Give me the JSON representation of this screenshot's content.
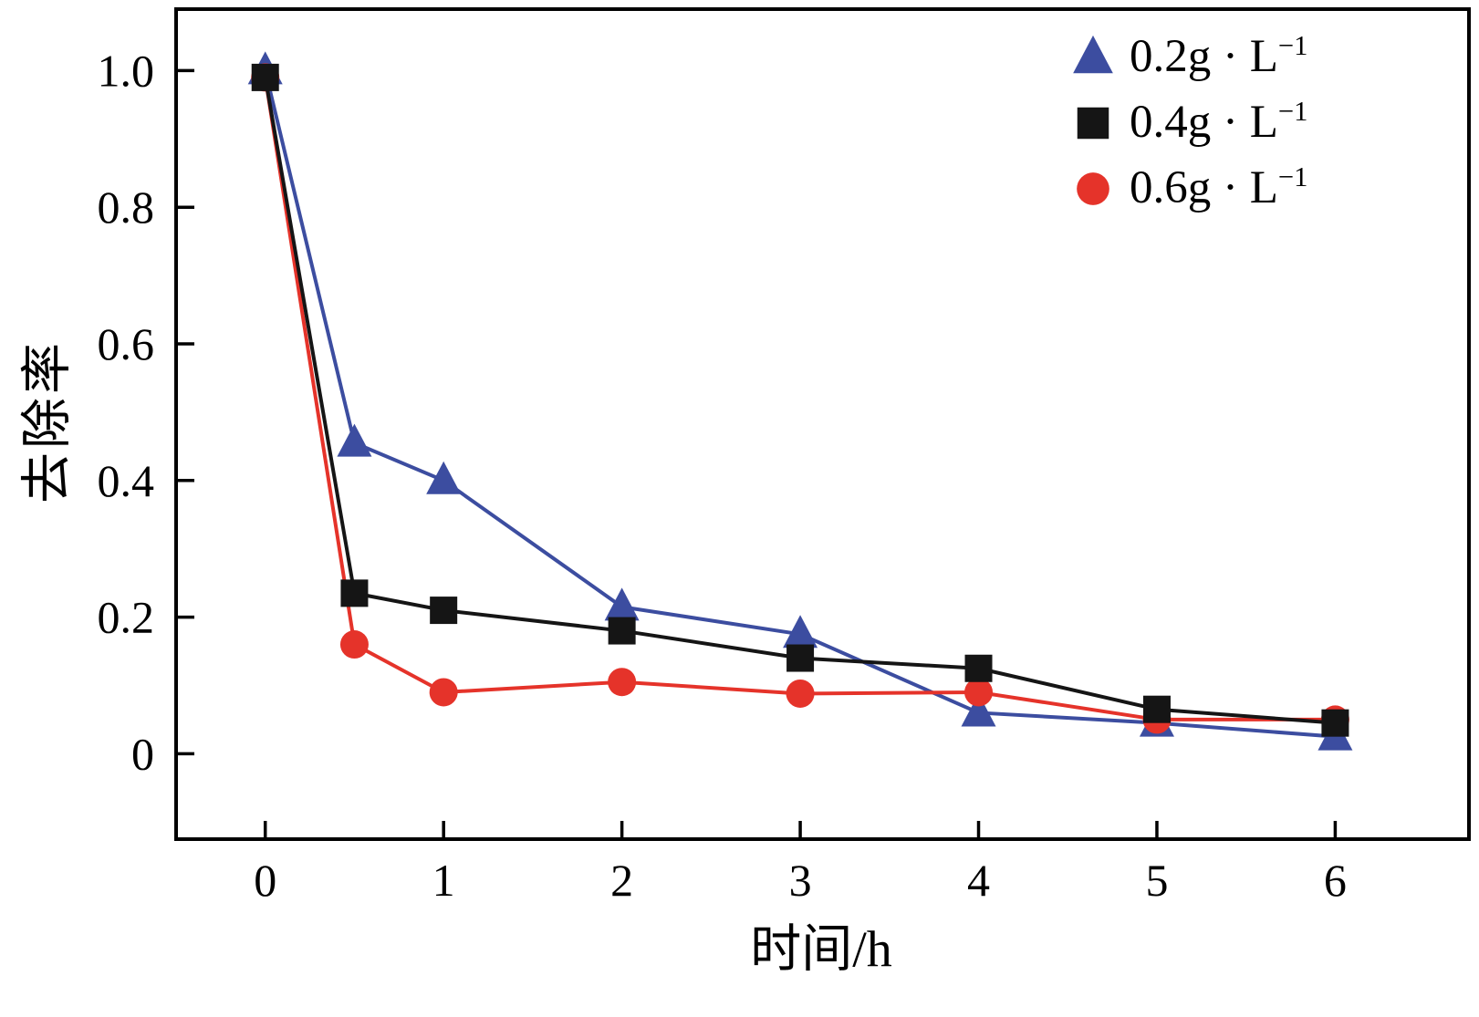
{
  "figure": {
    "background": "#ffffff",
    "axis_color": "#000000"
  },
  "chart_data": {
    "type": "line",
    "title": "",
    "xlabel": "时间/h",
    "ylabel": "去除率",
    "xlim": [
      -0.5,
      6.75
    ],
    "ylim": [
      -0.125,
      1.09
    ],
    "x_ticks": [
      0,
      1,
      2,
      3,
      4,
      5,
      6
    ],
    "x_tick_labels": [
      "0",
      "1",
      "2",
      "3",
      "4",
      "5",
      "6"
    ],
    "y_ticks": [
      0,
      0.2,
      0.4,
      0.6,
      0.8,
      1.0
    ],
    "y_tick_labels": [
      "0",
      "0.2",
      "0.4",
      "0.6",
      "0.8",
      "1.0"
    ],
    "grid": false,
    "legend_position": "top-right",
    "series": [
      {
        "name": "0.2g·L⁻¹",
        "label_base": "0.2g · L",
        "label_exp": "−1",
        "marker": "triangle",
        "color": "#3c4da0",
        "x": [
          0,
          0.5,
          1,
          2,
          3,
          4,
          5,
          6
        ],
        "y": [
          1.0,
          0.455,
          0.4,
          0.215,
          0.175,
          0.06,
          0.045,
          0.025
        ]
      },
      {
        "name": "0.4g·L⁻¹",
        "label_base": "0.4g · L",
        "label_exp": "−1",
        "marker": "square",
        "color": "#151515",
        "x": [
          0,
          0.5,
          1,
          2,
          3,
          4,
          5,
          6
        ],
        "y": [
          0.99,
          0.235,
          0.21,
          0.18,
          0.14,
          0.125,
          0.065,
          0.045
        ]
      },
      {
        "name": "0.6g·L⁻¹",
        "label_base": "0.6g · L",
        "label_exp": "−1",
        "marker": "circle",
        "color": "#e5332a",
        "x": [
          0,
          0.5,
          1,
          2,
          3,
          4,
          5,
          6
        ],
        "y": [
          0.99,
          0.16,
          0.09,
          0.105,
          0.088,
          0.09,
          0.05,
          0.05
        ]
      }
    ]
  }
}
